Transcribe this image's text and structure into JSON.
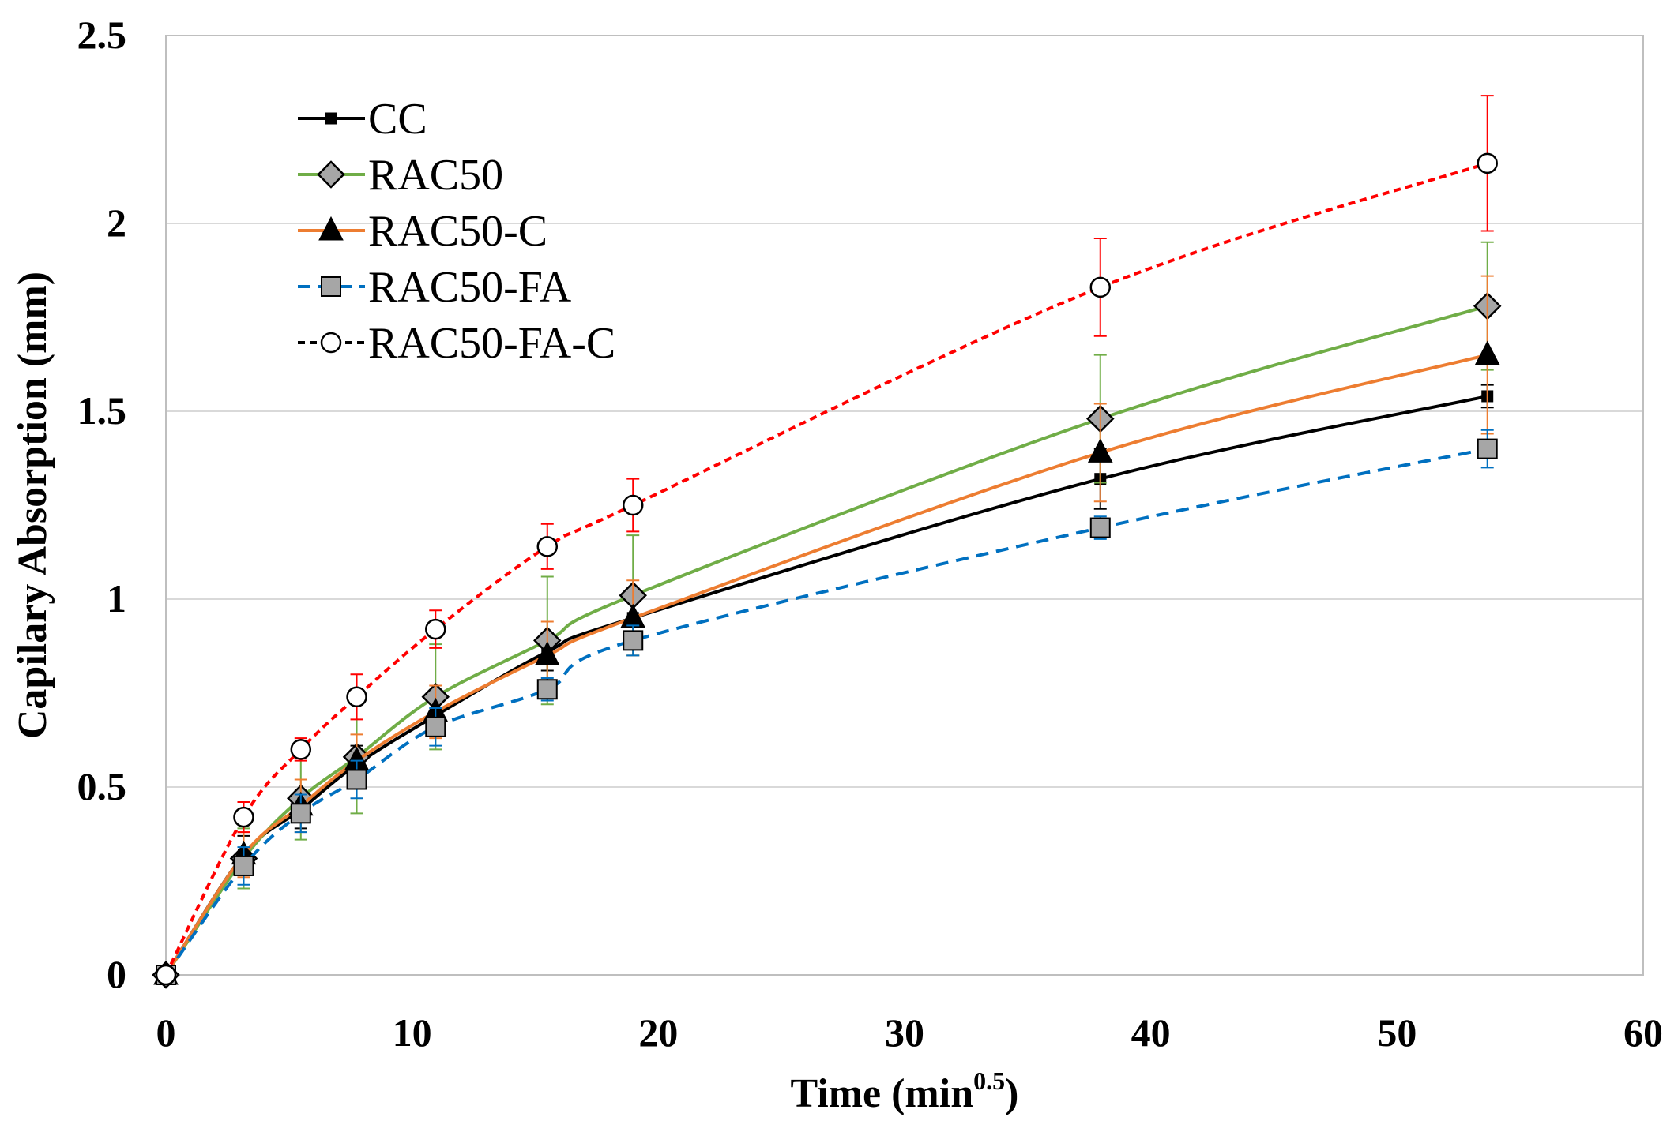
{
  "chart_data": {
    "type": "line",
    "title": "",
    "xlabel": {
      "main": "Time (min",
      "sup": "0.5",
      "close": ")"
    },
    "ylabel": "Capilary Absorption (mm)",
    "xlim": [
      0,
      60
    ],
    "ylim": [
      0,
      2.5
    ],
    "xticks": [
      "0",
      "10",
      "20",
      "30",
      "40",
      "50",
      "60"
    ],
    "yticks": [
      "0",
      "0.5",
      "1",
      "1.5",
      "2",
      "2.5"
    ],
    "grid": "horizontal",
    "legend_position": "top-left",
    "x": [
      0,
      3.16,
      5.48,
      7.75,
      10.95,
      15.49,
      18.97,
      37.95,
      53.67
    ],
    "series": [
      {
        "name": "CC",
        "color": "#000000",
        "dash": "solid",
        "marker": "small-square",
        "marker_fill": "#000000",
        "error_color": "#000000",
        "values": [
          0,
          0.32,
          0.44,
          0.56,
          0.69,
          0.86,
          0.95,
          1.32,
          1.54
        ],
        "errors": [
          0,
          0.05,
          0.05,
          0.05,
          0.05,
          0.05,
          0.05,
          0.08,
          0.03
        ]
      },
      {
        "name": "RAC50",
        "color": "#70ad47",
        "dash": "solid",
        "marker": "diamond",
        "marker_fill": "#a6a6a6",
        "error_color": "#70ad47",
        "values": [
          0,
          0.31,
          0.47,
          0.58,
          0.74,
          0.89,
          1.01,
          1.48,
          1.78
        ],
        "errors": [
          0,
          0.08,
          0.11,
          0.15,
          0.14,
          0.17,
          0.16,
          0.17,
          0.17
        ]
      },
      {
        "name": "RAC50-C",
        "color": "#ed7d31",
        "dash": "solid",
        "marker": "triangle",
        "marker_fill": "#000000",
        "error_color": "#ed7d31",
        "values": [
          0,
          0.32,
          0.45,
          0.57,
          0.7,
          0.85,
          0.95,
          1.39,
          1.65
        ],
        "errors": [
          0,
          0.06,
          0.07,
          0.07,
          0.07,
          0.09,
          0.1,
          0.13,
          0.21
        ]
      },
      {
        "name": "RAC50-FA",
        "color": "#0070c0",
        "dash": "dashed",
        "marker": "square",
        "marker_fill": "#a6a6a6",
        "error_color": "#0070c0",
        "values": [
          0,
          0.29,
          0.43,
          0.52,
          0.66,
          0.76,
          0.89,
          1.19,
          1.4
        ],
        "errors": [
          0,
          0.05,
          0.05,
          0.05,
          0.05,
          0.03,
          0.04,
          0.03,
          0.05
        ]
      },
      {
        "name": "RAC50-FA-C",
        "color": "#000000",
        "line_color": "#ff0000",
        "dash": "dotted",
        "marker": "circle",
        "marker_fill": "#ffffff",
        "error_color": "#ff0000",
        "values": [
          0,
          0.42,
          0.6,
          0.74,
          0.92,
          1.14,
          1.25,
          1.83,
          2.16
        ],
        "errors": [
          0,
          0.04,
          0.03,
          0.06,
          0.05,
          0.06,
          0.07,
          0.13,
          0.18
        ]
      }
    ]
  }
}
